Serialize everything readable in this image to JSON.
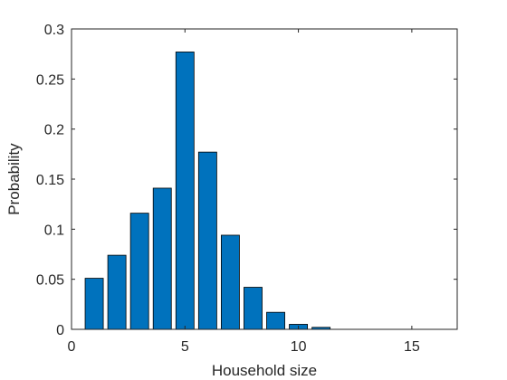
{
  "chart_data": {
    "type": "bar",
    "title": "",
    "xlabel": "Household size",
    "ylabel": "Probability",
    "xlim": [
      0,
      17
    ],
    "ylim": [
      0,
      0.3
    ],
    "x_ticks": [
      0,
      5,
      10,
      15
    ],
    "x_tick_labels": [
      "0",
      "5",
      "10",
      "15"
    ],
    "y_ticks": [
      0,
      0.05,
      0.1,
      0.15,
      0.2,
      0.25,
      0.3
    ],
    "y_tick_labels": [
      "0",
      "0.05",
      "0.1",
      "0.15",
      "0.2",
      "0.25",
      "0.3"
    ],
    "grid": false,
    "bar_color": "#0072BD",
    "bar_edge_color": "#000000",
    "x": [
      1,
      2,
      3,
      4,
      5,
      6,
      7,
      8,
      9,
      10,
      11,
      12,
      13,
      14,
      15,
      16
    ],
    "values": [
      0.051,
      0.074,
      0.116,
      0.141,
      0.277,
      0.177,
      0.094,
      0.042,
      0.017,
      0.005,
      0.002,
      0,
      0,
      0,
      0,
      0
    ]
  }
}
